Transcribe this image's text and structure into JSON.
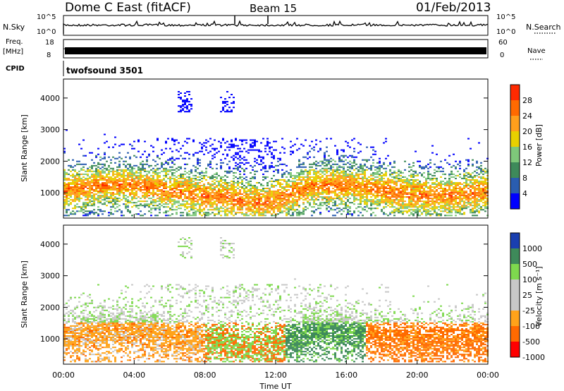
{
  "header": {
    "station": "Dome C East (fitACF)",
    "beam": "Beam 15",
    "date": "01/Feb/2013"
  },
  "top_panels": {
    "nsky_label": "N.Sky",
    "nsky_ticks": [
      "10^5",
      "10^0"
    ],
    "nsearch_label": "N.Search",
    "nsearch_ticks": [
      "10^5",
      "10^0"
    ],
    "freq_label": "Freq.",
    "freq_unit": "[MHz]",
    "freq_ticks": [
      "18",
      "8"
    ],
    "nave_label": "Nave",
    "nave_ticks": [
      "60",
      "0"
    ],
    "cpid_label": "CPID",
    "cpid_value": "twofsound 3501"
  },
  "colors": {
    "power_scale": [
      "#0000ff",
      "#2a5db0",
      "#3e8a5a",
      "#7ec87a",
      "#e8d000",
      "#ff9f1c",
      "#ff6a00",
      "#ff2a00"
    ],
    "velocity_scale": [
      "#ff0000",
      "#ff6a00",
      "#ffa31a",
      "#c8c8c8",
      "#c8c8c8",
      "#7ed94e",
      "#3e8a5a",
      "#1a3fb0"
    ]
  },
  "chart_data": [
    {
      "type": "heatmap",
      "name": "power",
      "ylabel": "Slant Range [km]",
      "yticks": [
        "1000",
        "2000",
        "3000",
        "4000"
      ],
      "ylim": [
        200,
        4600
      ],
      "xticks": [
        "00:00",
        "04:00",
        "08:00",
        "12:00",
        "16:00",
        "20:00",
        "00:00"
      ],
      "xlim_hours": [
        0,
        24
      ],
      "colorbar_label": "Power [dB]",
      "colorbar_ticks": [
        "4",
        "8",
        "12",
        "16",
        "20",
        "24",
        "28"
      ]
    },
    {
      "type": "heatmap",
      "name": "velocity",
      "ylabel": "Slant Range [km]",
      "yticks": [
        "1000",
        "2000",
        "3000",
        "4000"
      ],
      "ylim": [
        200,
        4600
      ],
      "xticks": [
        "00:00",
        "04:00",
        "08:00",
        "12:00",
        "16:00",
        "20:00",
        "00:00"
      ],
      "xlim_hours": [
        0,
        24
      ],
      "xlabel": "Time UT",
      "colorbar_label": "Velocity [m s⁻¹]",
      "colorbar_ticks": [
        "1000",
        "500",
        "100",
        "25",
        "-25",
        "-100",
        "-500",
        "-1000"
      ]
    }
  ]
}
